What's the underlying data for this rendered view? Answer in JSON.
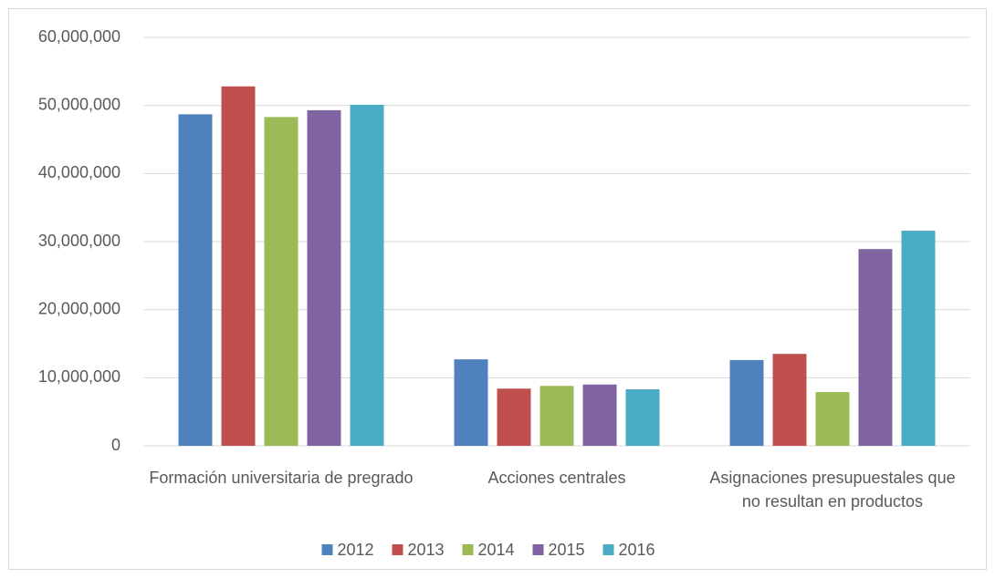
{
  "chart_data": {
    "type": "bar",
    "categories": [
      "Formación universitaria de pregrado",
      "Acciones centrales",
      "Asignaciones presupuestales que no resultan en productos"
    ],
    "series": [
      {
        "name": "2012",
        "color": "#4f81bd",
        "values": [
          48700000,
          12700000,
          12600000
        ]
      },
      {
        "name": "2013",
        "color": "#c0504d",
        "values": [
          52800000,
          8400000,
          13500000
        ]
      },
      {
        "name": "2014",
        "color": "#9bbb59",
        "values": [
          48300000,
          8800000,
          7900000
        ]
      },
      {
        "name": "2015",
        "color": "#8064a2",
        "values": [
          49300000,
          9000000,
          28900000
        ]
      },
      {
        "name": "2016",
        "color": "#4bacc6",
        "values": [
          50100000,
          8300000,
          31600000
        ]
      }
    ],
    "ylim": [
      0,
      60000000
    ],
    "yticks": [
      0,
      {
        "value": 10000000,
        "label": "10,000,000"
      },
      {
        "value": 20000000,
        "label": "20,000,000"
      },
      {
        "value": 30000000,
        "label": "30,000,000"
      },
      {
        "value": 40000000,
        "label": "40,000,000"
      },
      {
        "value": 50000000,
        "label": "50,000,000"
      },
      {
        "value": 60000000,
        "label": "60,000,000"
      }
    ],
    "grid": true,
    "legend": "bottom"
  }
}
